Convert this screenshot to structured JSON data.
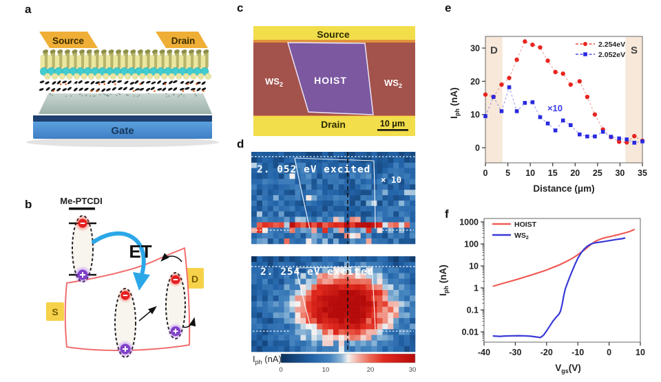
{
  "panels": {
    "a": {
      "label": "a",
      "source": "Source",
      "drain": "Drain",
      "gate": "Gate"
    },
    "b": {
      "label": "b",
      "molecule": "Me-PTCDI",
      "transfer_label": "ET",
      "source": "S",
      "drain": "D"
    },
    "c": {
      "label": "c",
      "source": "Source",
      "drain": "Drain",
      "ws2_base": "WS",
      "ws2_sub": "2",
      "hoist": "HOIST",
      "scalebar": "10 μm"
    },
    "d": {
      "label": "d"
    },
    "e": {
      "label": "e"
    },
    "f": {
      "label": "f"
    }
  },
  "chart_data": [
    {
      "id": "panel_d_photocurrent_maps",
      "type": "heatmap",
      "maps": [
        {
          "title": "2. 052 eV excited",
          "scale_note": "× 10",
          "pattern": "blue noise with narrow red streak (Iph ~20-30 nA) along drain edge near bottom; HOIST region outlined in white; black dashed vertical profile line"
        },
        {
          "title": "2. 254 eV excited",
          "pattern": "broad red hotspot (Iph ~20-30 nA) filling HOIST region between contact edges; white outline and black dashed profile line"
        }
      ],
      "colorbar": {
        "label_base": "I",
        "label_sub": "ph",
        "label_rest": " (nA)",
        "ticks": [
          0,
          10,
          20,
          30
        ],
        "min": 0,
        "max": 30,
        "colors": [
          "#0b2f5a",
          "#2263a8",
          "#4584bf",
          "#8fb8d8",
          "#f4f2f0",
          "#f3b3a9",
          "#ea6450",
          "#e02a1e",
          "#b50b0b"
        ]
      }
    },
    {
      "id": "panel_e_profile",
      "type": "scatter",
      "xlabel": "Distance (μm)",
      "ylabel": {
        "base": "I",
        "sub": "ph",
        "rest": " (nA)"
      },
      "xlim": [
        0,
        35
      ],
      "ylim": [
        -4.5,
        33.5
      ],
      "xticks": [
        0,
        5,
        10,
        15,
        20,
        25,
        30,
        35
      ],
      "yticks": [
        0,
        10,
        20,
        30
      ],
      "regions": [
        {
          "label": "D",
          "x0": 0,
          "x1": 3.8,
          "color": "#f7e8d9"
        },
        {
          "label": "S",
          "x0": 31.2,
          "x1": 35,
          "color": "#f7e8d9"
        }
      ],
      "annotation": {
        "text": "×10",
        "x": 15.5,
        "y": 11,
        "color": "#3a3ae8"
      },
      "x": [
        0,
        1.8,
        3.6,
        5.3,
        7,
        8.8,
        10.5,
        12.2,
        13.9,
        15.6,
        17.3,
        19,
        21,
        22.7,
        24.4,
        26.2,
        28,
        29.8,
        31.5,
        33.2,
        35
      ],
      "series": [
        {
          "name": "2.254eV",
          "color": "#e8251f",
          "marker": "circle",
          "y": [
            16,
            15.3,
            19,
            21,
            26.5,
            32,
            31,
            30.2,
            26.2,
            22.8,
            22.3,
            19,
            20,
            15.3,
            10,
            5.5,
            3.2,
            1.8,
            1.6,
            3.5,
            2.1
          ]
        },
        {
          "name": "2.052eV",
          "color": "#2a2ae0",
          "marker": "square",
          "y": [
            9.5,
            15.3,
            11,
            18.2,
            11,
            13.5,
            13.7,
            9.2,
            7.3,
            5.2,
            8.2,
            6.8,
            4,
            3.4,
            3.4,
            4.8,
            3.3,
            2.8,
            2.5,
            1.5,
            1.9
          ]
        }
      ]
    },
    {
      "id": "panel_f_transfer",
      "type": "line",
      "xlabel": {
        "base": "V",
        "sub": "gs",
        "rest": "(V)"
      },
      "ylabel": {
        "base": "I",
        "sub": "ph",
        "rest": " (nA)"
      },
      "xlim": [
        -40,
        10
      ],
      "xticks": [
        -40,
        -30,
        -20,
        -10,
        0,
        10
      ],
      "yscale": "log",
      "yticks": [
        0.01,
        0.1,
        1,
        10,
        100,
        1000
      ],
      "ytick_labels": [
        "0.01",
        "0.1",
        "1",
        "10",
        "100",
        "1000"
      ],
      "series": [
        {
          "name": "HOIST",
          "name_base": "HOIST",
          "name_sub": "",
          "color": "#f15b55",
          "x": [
            -37,
            -34,
            -31,
            -28,
            -25,
            -22,
            -20,
            -18,
            -16,
            -14,
            -12,
            -10,
            -8,
            -6,
            -5,
            -4,
            -3,
            -2,
            -1,
            0,
            1,
            2,
            3,
            4,
            5,
            6,
            7,
            8
          ],
          "y": [
            1.2,
            1.6,
            2.1,
            2.8,
            3.8,
            5.2,
            6.5,
            8.5,
            11,
            15,
            21,
            32,
            52,
            90,
            115,
            140,
            160,
            180,
            195,
            210,
            225,
            245,
            265,
            290,
            315,
            345,
            390,
            450
          ]
        },
        {
          "name": "WS2",
          "name_base": "WS",
          "name_sub": "2",
          "color": "#3838d8",
          "x": [
            -37,
            -35,
            -33,
            -31,
            -29,
            -27,
            -25,
            -23,
            -22,
            -21,
            -20,
            -19,
            -18,
            -17,
            -16,
            -15.5,
            -15,
            -14.5,
            -14,
            -13,
            -12,
            -11,
            -10,
            -9,
            -8,
            -7,
            -6,
            -5,
            -4,
            -3,
            -2,
            -1,
            0,
            1,
            2,
            3,
            4,
            5
          ],
          "y": [
            0.0065,
            0.0062,
            0.0065,
            0.0066,
            0.0067,
            0.0066,
            0.0063,
            0.0058,
            0.0055,
            0.007,
            0.011,
            0.018,
            0.03,
            0.045,
            0.065,
            0.09,
            0.18,
            0.45,
            0.9,
            2.2,
            5,
            11,
            22,
            38,
            58,
            78,
            95,
            108,
            115,
            120,
            126,
            132,
            140,
            148,
            156,
            164,
            172,
            185
          ]
        }
      ]
    }
  ]
}
